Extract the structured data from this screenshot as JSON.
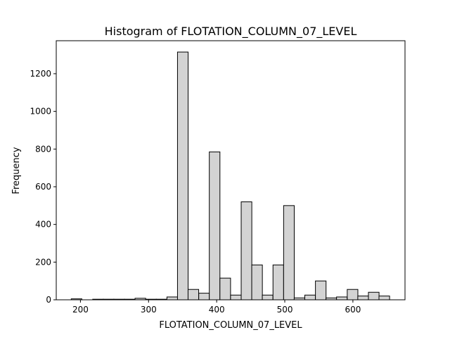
{
  "chart_data": {
    "type": "bar",
    "title": "Histogram of FLOTATION_COLUMN_07_LEVEL",
    "xlabel": "FLOTATION_COLUMN_07_LEVEL",
    "ylabel": "Frequency",
    "xlim": [
      164.5,
      676.5
    ],
    "ylim": [
      0,
      1375
    ],
    "xticks": [
      200,
      300,
      400,
      500,
      600
    ],
    "yticks": [
      0,
      200,
      400,
      600,
      800,
      1000,
      1200
    ],
    "grid": false,
    "bar_color": "#d3d3d3",
    "edge_color": "#000000",
    "bin_width": 15.6,
    "bin_starts": [
      186.5,
      218.0,
      233.5,
      249.0,
      264.6,
      280.2,
      295.8,
      311.3,
      327.0,
      342.5,
      358.0,
      373.7,
      389.2,
      404.8,
      420.4,
      436.0,
      451.5,
      467.0,
      482.7,
      498.3,
      513.8,
      529.4,
      545.0,
      560.5,
      576.0,
      591.7,
      607.2,
      622.8,
      638.3
    ],
    "values": [
      5,
      3,
      3,
      3,
      3,
      8,
      3,
      3,
      15,
      1315,
      55,
      35,
      785,
      115,
      25,
      520,
      185,
      25,
      185,
      500,
      10,
      25,
      100,
      10,
      15,
      55,
      20,
      40,
      20
    ]
  }
}
